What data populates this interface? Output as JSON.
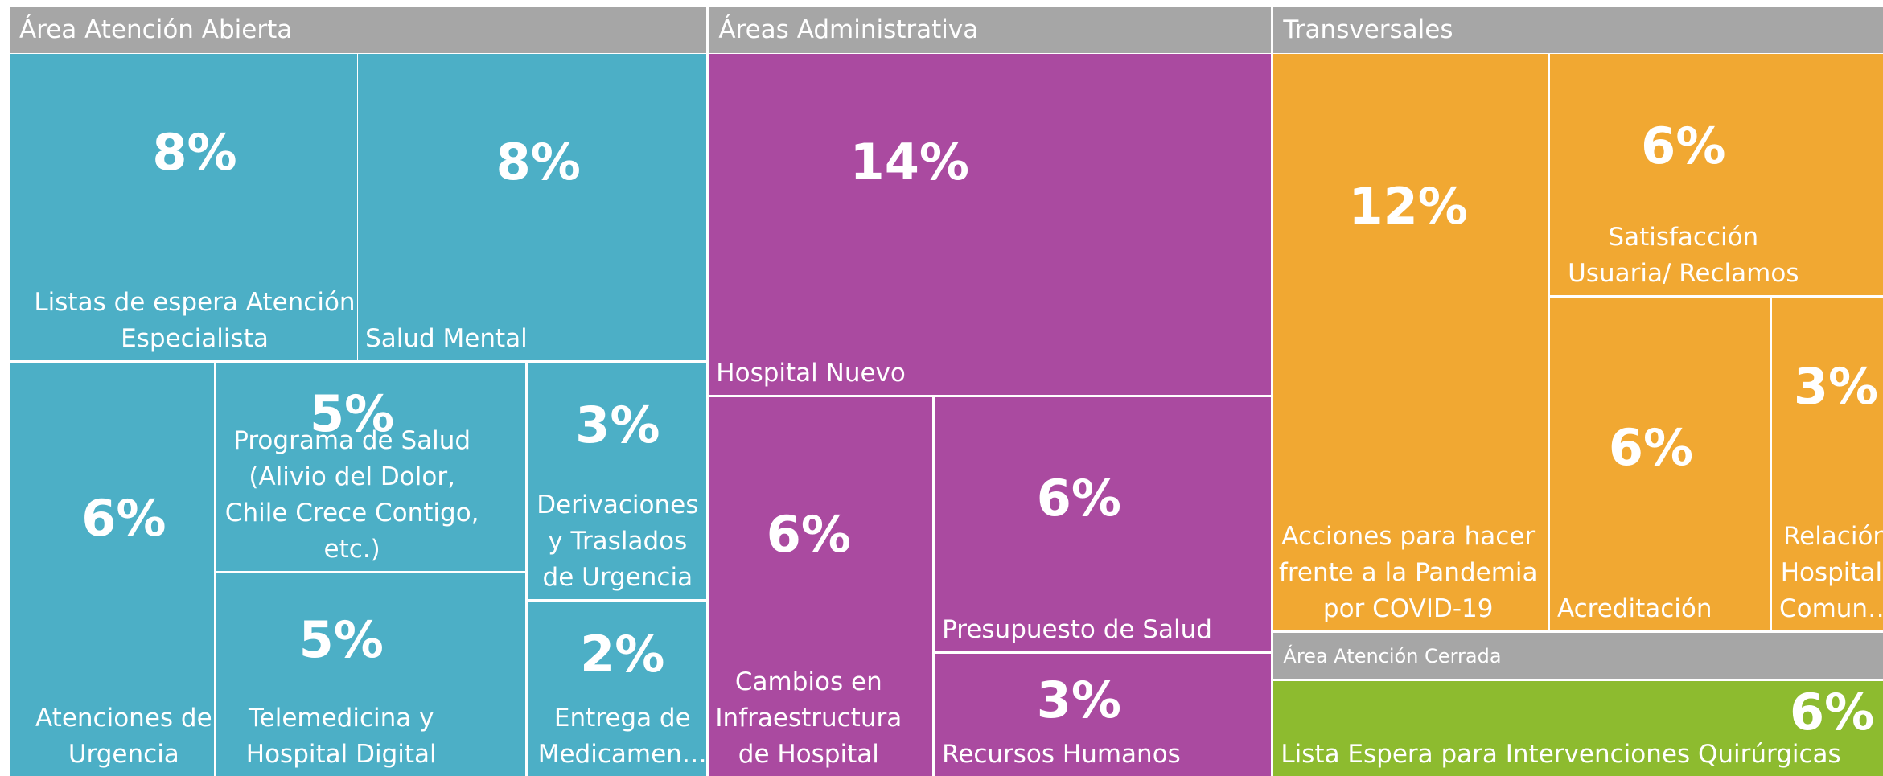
{
  "chart_data": {
    "type": "treemap",
    "groups": [
      {
        "name": "Área Atención Abierta",
        "color": "#4cafc6",
        "categories": [
          "Listas de espera Atención Especialista",
          "Salud Mental",
          "Atenciones de Urgencia",
          "Programa de Salud (Alivio del Dolor, Chile Crece Contigo, etc.)",
          "Telemedicina y Hospital Digital",
          "Derivaciones y Traslados de Urgencia",
          "Entrega de Medicamen…"
        ],
        "values": [
          8,
          8,
          6,
          5,
          5,
          3,
          2
        ],
        "value_labels": [
          "8%",
          "8%",
          "6%",
          "5%",
          "5%",
          "3%",
          "2%"
        ]
      },
      {
        "name": "Áreas Administrativa",
        "color": "#aa4aa0",
        "categories": [
          "Hospital Nuevo",
          "Cambios en Infraestructura de Hospital",
          "Presupuesto de Salud",
          "Recursos Humanos"
        ],
        "values": [
          14,
          6,
          6,
          3
        ],
        "value_labels": [
          "14%",
          "6%",
          "6%",
          "3%"
        ]
      },
      {
        "name": "Transversales",
        "color": "#f1a832",
        "categories": [
          "Acciones para hacer frente a la Pandemia por COVID-19",
          "Satisfacción Usuaria/ Reclamos",
          "Acreditación",
          "Relación Hospital-Comun…"
        ],
        "values": [
          12,
          6,
          6,
          3
        ],
        "value_labels": [
          "12%",
          "6%",
          "6%",
          "3%"
        ]
      },
      {
        "name": "Área Atención Cerrada",
        "color": "#8dbb2f",
        "categories": [
          "Lista Espera para Intervenciones Quirúrgicas"
        ],
        "values": [
          6
        ],
        "value_labels": [
          "6%"
        ]
      }
    ]
  }
}
